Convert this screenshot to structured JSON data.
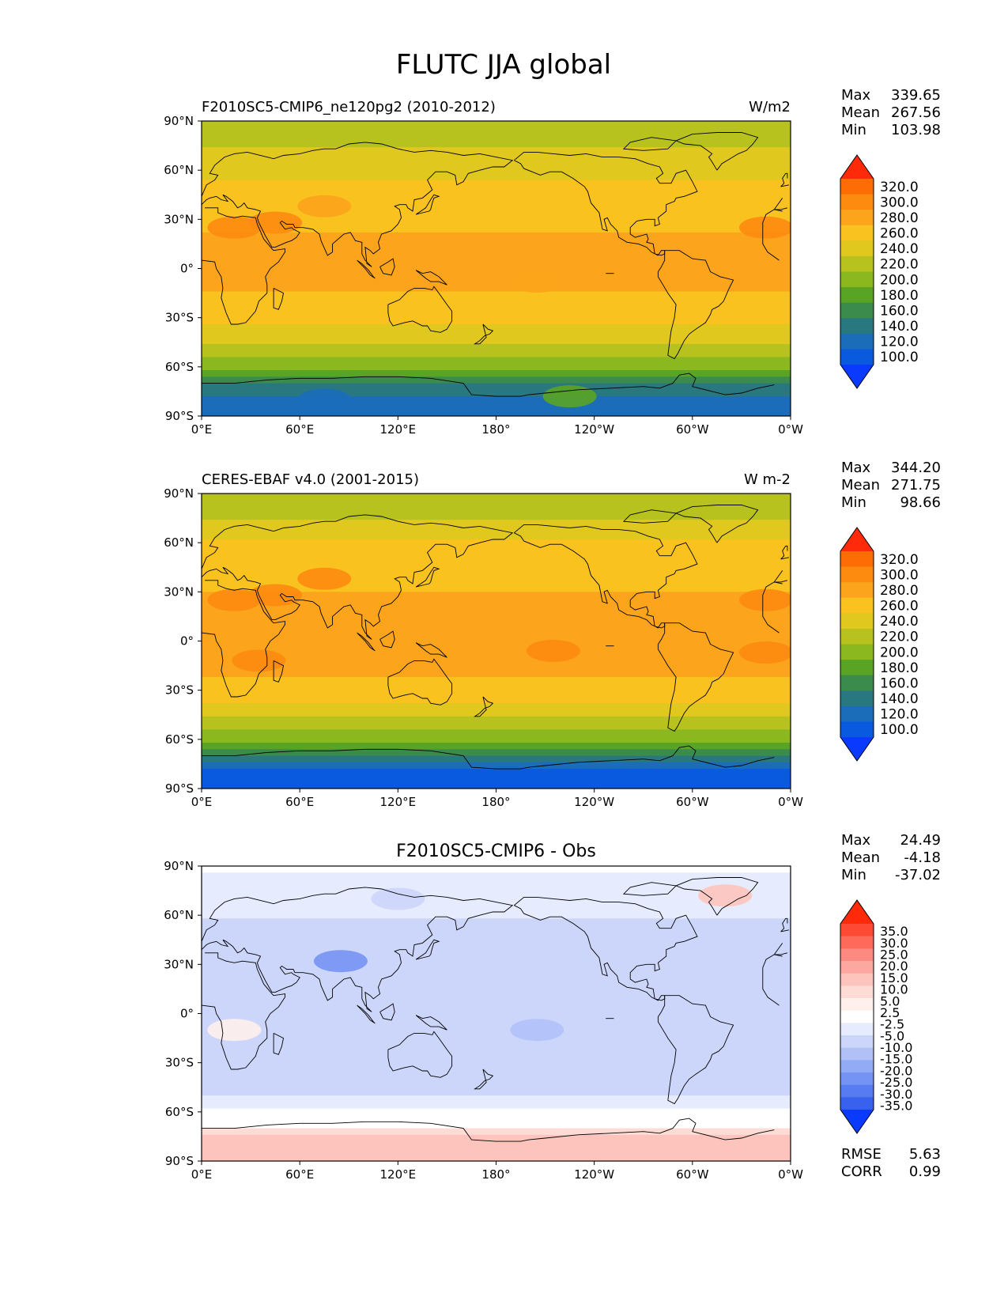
{
  "figure": {
    "title": "FLUTC JJA global"
  },
  "chart_data": [
    {
      "type": "heatmap",
      "name": "test",
      "left_title": "F2010SC5-CMIP6_ne120pg2 (2010-2012)",
      "center_title": "",
      "units": "W/m2",
      "x_ticks": [
        "0°E",
        "60°E",
        "120°E",
        "180°",
        "120°W",
        "60°W",
        "0°W"
      ],
      "y_ticks": [
        "90°N",
        "60°N",
        "30°N",
        "0°",
        "30°S",
        "60°S",
        "90°S"
      ],
      "xlim": [
        0,
        360
      ],
      "ylim": [
        -90,
        90
      ],
      "stats": {
        "max_label": "Max",
        "max": "339.65",
        "mean_label": "Mean",
        "mean": "267.56",
        "min_label": "Min",
        "min": "103.98"
      },
      "colorbar": {
        "levels": [
          "320.0",
          "300.0",
          "280.0",
          "260.0",
          "240.0",
          "220.0",
          "200.0",
          "180.0",
          "160.0",
          "140.0",
          "120.0",
          "100.0"
        ],
        "colors": [
          "#fe2a0a",
          "#fe6d05",
          "#fd8b10",
          "#fca41b",
          "#f9c21f",
          "#e0c81e",
          "#b8c21e",
          "#8cb81f",
          "#5aa425",
          "#3b8c4c",
          "#2a787f",
          "#1b6dba",
          "#0a5ae0",
          "#0a3afe"
        ]
      },
      "zonal_profile": [
        {
          "lat": 90,
          "value": 220
        },
        {
          "lat": 78,
          "value": 230
        },
        {
          "lat": 70,
          "value": 245
        },
        {
          "lat": 60,
          "value": 255
        },
        {
          "lat": 45,
          "value": 265
        },
        {
          "lat": 30,
          "value": 275
        },
        {
          "lat": 15,
          "value": 285
        },
        {
          "lat": 0,
          "value": 282
        },
        {
          "lat": -15,
          "value": 280
        },
        {
          "lat": -30,
          "value": 268
        },
        {
          "lat": -40,
          "value": 250
        },
        {
          "lat": -50,
          "value": 232
        },
        {
          "lat": -58,
          "value": 210
        },
        {
          "lat": -65,
          "value": 185
        },
        {
          "lat": -72,
          "value": 150
        },
        {
          "lat": -80,
          "value": 130
        },
        {
          "lat": -90,
          "value": 125
        }
      ],
      "features": [
        {
          "lon": 45,
          "lat": 28,
          "value": 305
        },
        {
          "lon": 75,
          "lat": 38,
          "value": 295
        },
        {
          "lon": 20,
          "lat": 25,
          "value": 300
        },
        {
          "lon": 345,
          "lat": 25,
          "value": 300
        },
        {
          "lon": 205,
          "lat": -8,
          "value": 292
        },
        {
          "lon": 75,
          "lat": -80,
          "value": 120
        },
        {
          "lon": 225,
          "lat": -78,
          "value": 180
        }
      ]
    },
    {
      "type": "heatmap",
      "name": "reference",
      "left_title": "CERES-EBAF v4.0 (2001-2015)",
      "center_title": "",
      "units": "W m-2",
      "x_ticks": [
        "0°E",
        "60°E",
        "120°E",
        "180°",
        "120°W",
        "60°W",
        "0°W"
      ],
      "y_ticks": [
        "90°N",
        "60°N",
        "30°N",
        "0°",
        "30°S",
        "60°S",
        "90°S"
      ],
      "xlim": [
        0,
        360
      ],
      "ylim": [
        -90,
        90
      ],
      "stats": {
        "max_label": "Max",
        "max": "344.20",
        "mean_label": "Mean",
        "mean": "271.75",
        "min_label": "Min",
        "min": "98.66"
      },
      "colorbar": {
        "levels": [
          "320.0",
          "300.0",
          "280.0",
          "260.0",
          "240.0",
          "220.0",
          "200.0",
          "180.0",
          "160.0",
          "140.0",
          "120.0",
          "100.0"
        ],
        "colors": [
          "#fe2a0a",
          "#fe6d05",
          "#fd8b10",
          "#fca41b",
          "#f9c21f",
          "#e0c81e",
          "#b8c21e",
          "#8cb81f",
          "#5aa425",
          "#3b8c4c",
          "#2a787f",
          "#1b6dba",
          "#0a5ae0",
          "#0a3afe"
        ]
      },
      "zonal_profile": [
        {
          "lat": 90,
          "value": 225
        },
        {
          "lat": 78,
          "value": 235
        },
        {
          "lat": 70,
          "value": 250
        },
        {
          "lat": 60,
          "value": 260
        },
        {
          "lat": 45,
          "value": 270
        },
        {
          "lat": 30,
          "value": 280
        },
        {
          "lat": 15,
          "value": 288
        },
        {
          "lat": 0,
          "value": 290
        },
        {
          "lat": -15,
          "value": 285
        },
        {
          "lat": -30,
          "value": 272
        },
        {
          "lat": -40,
          "value": 255
        },
        {
          "lat": -50,
          "value": 235
        },
        {
          "lat": -58,
          "value": 212
        },
        {
          "lat": -65,
          "value": 185
        },
        {
          "lat": -72,
          "value": 140
        },
        {
          "lat": -80,
          "value": 115
        },
        {
          "lat": -90,
          "value": 110
        }
      ],
      "features": [
        {
          "lon": 45,
          "lat": 28,
          "value": 310
        },
        {
          "lon": 75,
          "lat": 38,
          "value": 300
        },
        {
          "lon": 20,
          "lat": 25,
          "value": 305
        },
        {
          "lon": 345,
          "lat": 25,
          "value": 305
        },
        {
          "lon": 215,
          "lat": -6,
          "value": 302
        },
        {
          "lon": 345,
          "lat": -7,
          "value": 300
        },
        {
          "lon": 35,
          "lat": -12,
          "value": 300
        }
      ]
    },
    {
      "type": "heatmap",
      "name": "difference",
      "left_title": "",
      "center_title": "F2010SC5-CMIP6 - Obs",
      "units": "",
      "x_ticks": [
        "0°E",
        "60°E",
        "120°E",
        "180°",
        "120°W",
        "60°W",
        "0°W"
      ],
      "y_ticks": [
        "90°N",
        "60°N",
        "30°N",
        "0°",
        "30°S",
        "60°S",
        "90°S"
      ],
      "xlim": [
        0,
        360
      ],
      "ylim": [
        -90,
        90
      ],
      "stats": {
        "max_label": "Max",
        "max": "24.49",
        "mean_label": "Mean",
        "mean": "-4.18",
        "min_label": "Min",
        "min": "-37.02"
      },
      "extra_stats": {
        "rmse_label": "RMSE",
        "rmse": "5.63",
        "corr_label": "CORR",
        "corr": "0.99"
      },
      "colorbar": {
        "levels": [
          "35.0",
          "30.0",
          "25.0",
          "20.0",
          "15.0",
          "10.0",
          "5.0",
          "2.5",
          "-2.5",
          "-5.0",
          "-10.0",
          "-15.0",
          "-20.0",
          "-25.0",
          "-30.0",
          "-35.0"
        ],
        "colors": [
          "#fe2a0a",
          "#fe4a35",
          "#fd6a5a",
          "#fc8a80",
          "#fca79f",
          "#fdc4bd",
          "#fedcd6",
          "#fff0ec",
          "#ffffff",
          "#e6ebfd",
          "#ccd6fb",
          "#b1c1f8",
          "#93aaf5",
          "#7593f3",
          "#577bf0",
          "#3862ee",
          "#0a3afe"
        ]
      },
      "zonal_profile": [
        {
          "lat": 90,
          "value": -2
        },
        {
          "lat": 75,
          "value": -4
        },
        {
          "lat": 60,
          "value": -5
        },
        {
          "lat": 45,
          "value": -6
        },
        {
          "lat": 30,
          "value": -7
        },
        {
          "lat": 15,
          "value": -6
        },
        {
          "lat": 0,
          "value": -8
        },
        {
          "lat": -15,
          "value": -7
        },
        {
          "lat": -30,
          "value": -6
        },
        {
          "lat": -45,
          "value": -6
        },
        {
          "lat": -55,
          "value": -4
        },
        {
          "lat": -62,
          "value": 3
        },
        {
          "lat": -68,
          "value": -1
        },
        {
          "lat": -75,
          "value": 12
        },
        {
          "lat": -90,
          "value": 10
        }
      ],
      "features": [
        {
          "lon": 85,
          "lat": 32,
          "value": -22
        },
        {
          "lon": 120,
          "lat": 70,
          "value": -8
        },
        {
          "lon": 320,
          "lat": 72,
          "value": 12
        },
        {
          "lon": 205,
          "lat": -10,
          "value": -14
        },
        {
          "lon": 20,
          "lat": -10,
          "value": 3
        }
      ]
    }
  ]
}
